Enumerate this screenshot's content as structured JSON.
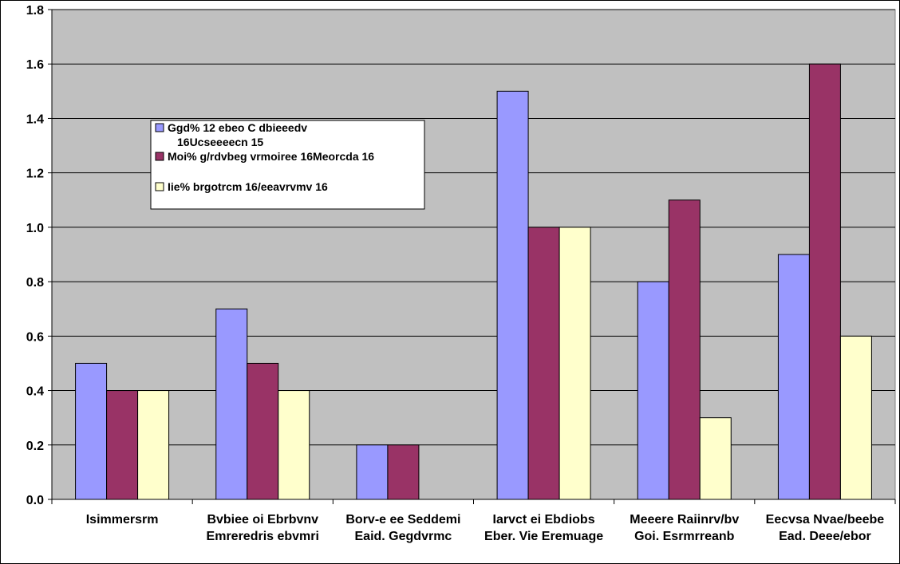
{
  "chart_data": {
    "type": "bar",
    "title": "",
    "xlabel": "",
    "ylabel": "",
    "ylim": [
      0,
      1.8
    ],
    "yticks": [
      "0.0",
      "0.2",
      "0.4",
      "0.6",
      "0.8",
      "1.0",
      "1.2",
      "1.4",
      "1.6",
      "1.8"
    ],
    "grid": true,
    "legend_position": "upper-left-inside",
    "plot_background": "#c0c0c0",
    "categories": [
      {
        "line1": "Isimmersrm",
        "line2": ""
      },
      {
        "line1": "Bvbiee oi Ebrbvnv",
        "line2": "Emreredris ebvmri"
      },
      {
        "line1": "Borv-e ee Seddemi",
        "line2": "Eaid. Gegdvrmc"
      },
      {
        "line1": "Iarvct ei Ebdiobs",
        "line2": "Eber. Vie Eremuage"
      },
      {
        "line1": "Meeere Raiinrv/bv",
        "line2": "Goi. Esrmrreanb"
      },
      {
        "line1": "Eecvsa Nvae/beebe",
        "line2": "Ead. Deee/ebor"
      }
    ],
    "series": [
      {
        "name_line1": "Ggd% 12 ebeo C dbieeedv",
        "name_line2": "16Ucseeeecn 15",
        "color": "#9999ff",
        "values": [
          0.5,
          0.7,
          0.2,
          1.5,
          0.8,
          0.9
        ]
      },
      {
        "name_line1": "Moi% g/rdvbeg vrmoiree 16Meorcda 16",
        "name_line2": "",
        "color": "#993366",
        "values": [
          0.4,
          0.5,
          0.2,
          1.0,
          1.1,
          1.6
        ]
      },
      {
        "name_line1": "Iie%  brgotrcm   16/eeavrvmv 16",
        "name_line2": "",
        "color": "#ffffcc",
        "values": [
          0.4,
          0.4,
          0,
          1.0,
          0.3,
          0.6
        ]
      }
    ]
  }
}
